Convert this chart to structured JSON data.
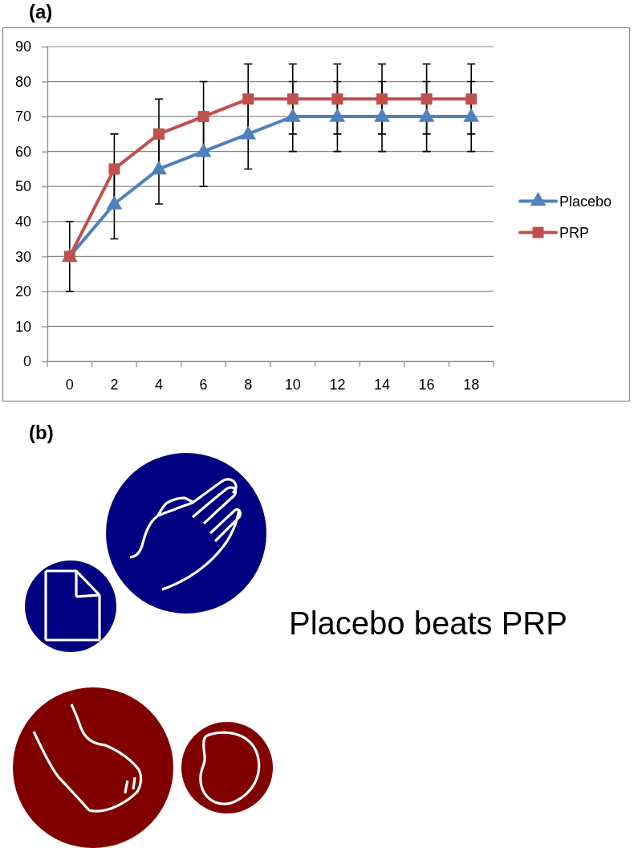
{
  "chart_data": [
    {
      "type": "line",
      "title": "(a)",
      "categories": [
        "0",
        "2",
        "4",
        "6",
        "8",
        "10",
        "12",
        "14",
        "16",
        "18"
      ],
      "series": [
        {
          "name": "Placebo",
          "color": "#4f81bd",
          "marker": "triangle",
          "values": [
            30,
            45,
            55,
            60,
            65,
            70,
            70,
            70,
            70,
            70
          ],
          "errors": [
            10,
            10,
            10,
            10,
            10,
            10,
            10,
            10,
            10,
            10
          ]
        },
        {
          "name": "PRP",
          "color": "#c0504d",
          "marker": "square",
          "values": [
            30,
            55,
            65,
            70,
            75,
            75,
            75,
            75,
            75,
            75
          ],
          "errors": [
            10,
            10,
            10,
            10,
            10,
            10,
            10,
            10,
            10,
            10
          ]
        }
      ],
      "ylim": [
        0,
        90
      ],
      "yticks": [
        0,
        10,
        20,
        30,
        40,
        50,
        60,
        70,
        80,
        90
      ],
      "grid": "y",
      "legend": "right"
    },
    {
      "type": "other",
      "title": "(b)",
      "annotations": [
        "Placebo beats PRP"
      ]
    }
  ]
}
